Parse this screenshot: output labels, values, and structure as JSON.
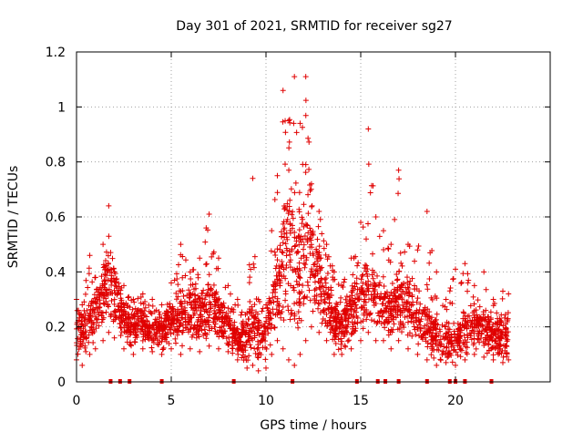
{
  "chart_data": {
    "type": "scatter",
    "title": "Day 301 of 2021, SRMTID for receiver sg27",
    "xlabel": "GPS time / hours",
    "ylabel": "SRMTID / TECUs",
    "xlim": [
      0,
      25
    ],
    "ylim": [
      0,
      1.2
    ],
    "xticks": [
      0,
      5,
      10,
      15,
      20
    ],
    "yticks": [
      0,
      0.2,
      0.4,
      0.6,
      0.8,
      1,
      1.2
    ],
    "ytick_labels": [
      "0",
      "0.2",
      "0.4",
      "0.6",
      "0.8",
      "1",
      "1.2"
    ],
    "grid": true,
    "marker": "+",
    "color": "#e00000",
    "envelope_note": "dense cloud of '+' markers; values below are approximate envelope samples per time",
    "envelope": {
      "x": [
        0.0,
        0.3,
        0.7,
        1.0,
        1.4,
        1.7,
        2.0,
        2.5,
        3.0,
        3.5,
        4.0,
        4.5,
        5.0,
        5.5,
        6.0,
        6.5,
        7.0,
        7.5,
        8.0,
        8.5,
        9.0,
        9.3,
        9.6,
        10.0,
        10.3,
        10.6,
        10.9,
        11.2,
        11.5,
        11.8,
        12.1,
        12.4,
        12.8,
        13.2,
        13.6,
        14.0,
        14.5,
        15.0,
        15.4,
        15.8,
        16.2,
        16.6,
        17.0,
        17.5,
        18.0,
        18.5,
        19.0,
        19.5,
        20.0,
        20.5,
        21.0,
        21.5,
        22.0,
        22.5,
        22.8
      ],
      "low": [
        0.08,
        0.06,
        0.1,
        0.12,
        0.15,
        0.18,
        0.16,
        0.12,
        0.1,
        0.12,
        0.11,
        0.1,
        0.12,
        0.1,
        0.12,
        0.11,
        0.13,
        0.12,
        0.11,
        0.08,
        0.05,
        0.06,
        0.04,
        0.05,
        0.1,
        0.15,
        0.12,
        0.08,
        0.06,
        0.1,
        0.15,
        0.2,
        0.18,
        0.15,
        0.1,
        0.1,
        0.12,
        0.15,
        0.18,
        0.15,
        0.15,
        0.12,
        0.15,
        0.12,
        0.1,
        0.08,
        0.06,
        0.07,
        0.06,
        0.08,
        0.1,
        0.09,
        0.08,
        0.07,
        0.08
      ],
      "mid": [
        0.18,
        0.17,
        0.22,
        0.26,
        0.32,
        0.36,
        0.3,
        0.22,
        0.2,
        0.21,
        0.19,
        0.18,
        0.22,
        0.24,
        0.26,
        0.25,
        0.28,
        0.24,
        0.2,
        0.15,
        0.14,
        0.22,
        0.16,
        0.15,
        0.25,
        0.32,
        0.42,
        0.45,
        0.4,
        0.42,
        0.45,
        0.42,
        0.35,
        0.28,
        0.22,
        0.2,
        0.24,
        0.3,
        0.34,
        0.3,
        0.28,
        0.24,
        0.3,
        0.28,
        0.26,
        0.2,
        0.16,
        0.15,
        0.14,
        0.18,
        0.2,
        0.18,
        0.17,
        0.16,
        0.16
      ],
      "high": [
        0.3,
        0.28,
        0.46,
        0.38,
        0.5,
        0.64,
        0.4,
        0.35,
        0.3,
        0.32,
        0.3,
        0.28,
        0.36,
        0.5,
        0.4,
        0.45,
        0.61,
        0.45,
        0.35,
        0.3,
        0.25,
        0.74,
        0.3,
        0.28,
        0.55,
        0.75,
        1.06,
        0.95,
        1.11,
        0.94,
        1.11,
        0.72,
        0.62,
        0.5,
        0.4,
        0.35,
        0.45,
        0.58,
        0.92,
        0.6,
        0.55,
        0.5,
        0.77,
        0.5,
        0.48,
        0.62,
        0.4,
        0.3,
        0.41,
        0.43,
        0.35,
        0.4,
        0.3,
        0.33,
        0.32
      ]
    },
    "zero_markers_x": [
      1.8,
      2.3,
      2.8,
      4.5,
      8.3,
      11.4,
      14.8,
      15.9,
      16.3,
      17.0,
      18.5,
      19.7,
      20.0,
      20.5,
      21.9
    ],
    "annotations": []
  }
}
